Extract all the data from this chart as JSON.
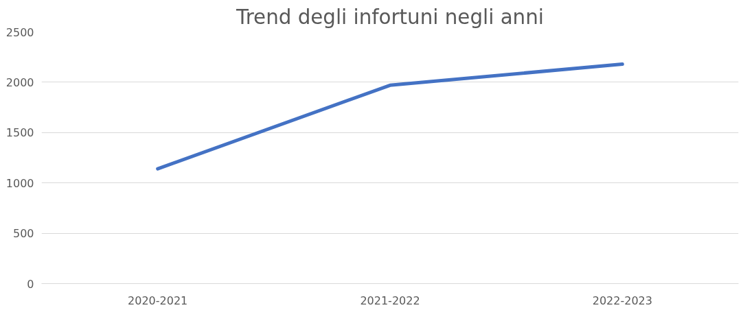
{
  "chart_data": {
    "type": "line",
    "title": "Trend degli infortuni negli anni",
    "categories": [
      "2020-2021",
      "2021-2022",
      "2022-2023"
    ],
    "series": [
      {
        "color": "#4472c4",
        "values": [
          1140,
          1970,
          2180
        ]
      }
    ],
    "ylim": [
      0,
      2500
    ],
    "yticks": [
      0,
      500,
      1000,
      1500,
      2000,
      2500
    ],
    "grid": "y"
  }
}
